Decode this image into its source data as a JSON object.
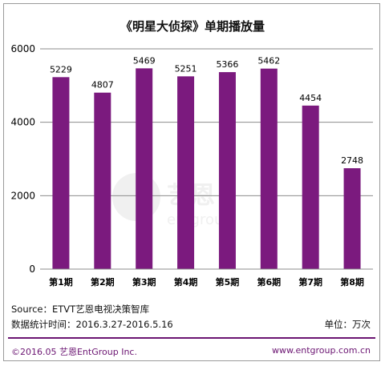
{
  "title": "《明星大侦探》单期播放量",
  "chart_data": {
    "type": "bar",
    "categories": [
      "第1期",
      "第2期",
      "第3期",
      "第4期",
      "第5期",
      "第6期",
      "第7期",
      "第8期"
    ],
    "values": [
      5229,
      4807,
      5469,
      5251,
      5366,
      5462,
      4454,
      2748
    ],
    "ylim": [
      0,
      6000
    ],
    "yticks": [
      0,
      2000,
      4000,
      6000
    ],
    "grid": true,
    "legend": "none",
    "bar_color": "#7b1a7e"
  },
  "footer": {
    "source": "Source：ETVT艺恩电视决策智库",
    "period": "数据统计时间：2016.3.27-2016.5.16",
    "unit": "单位：万次",
    "copyright": "©2016.05 艺恩EntGroup Inc.",
    "website": "www.entgroup.com.cn"
  },
  "watermark": {
    "brand": "艺恩",
    "sub": "entgroup"
  },
  "colors": {
    "accent": "#6b1572",
    "bar": "#7b1a7e",
    "grid": "#8c8c8c"
  }
}
